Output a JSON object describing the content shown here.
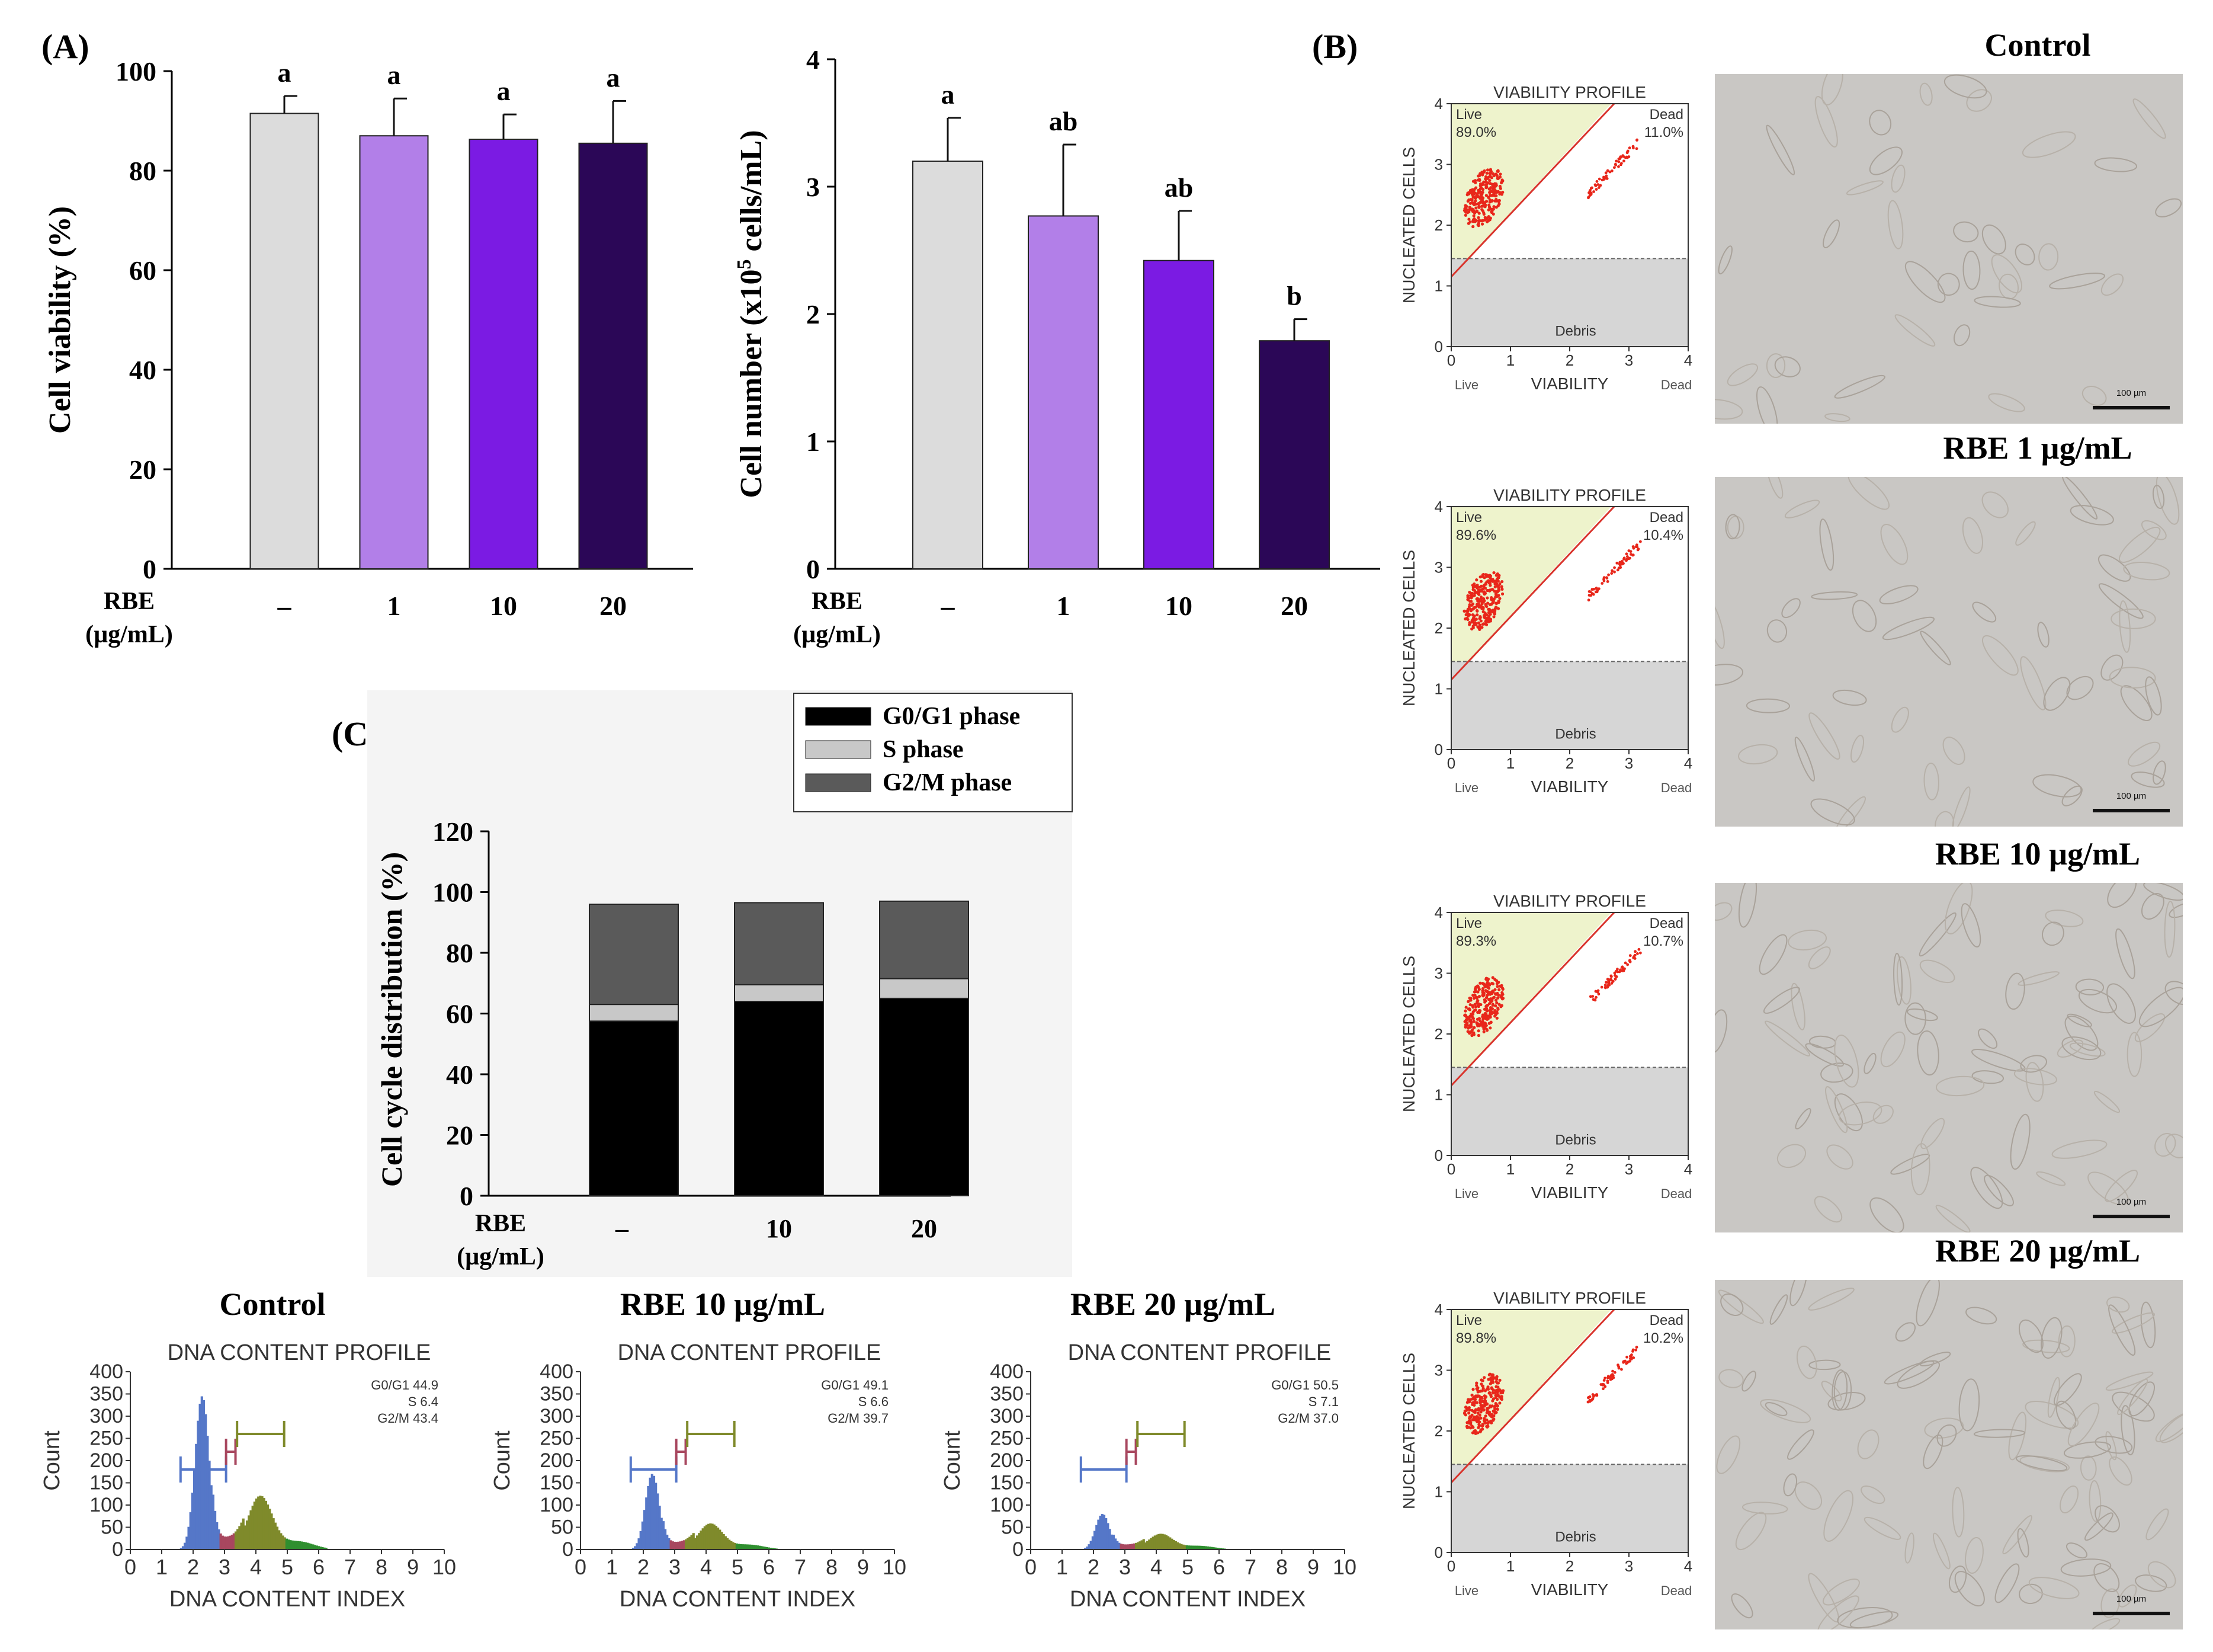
{
  "panel_labels": {
    "a": "(A)",
    "b": "(B)",
    "c": "(C)"
  },
  "rbe_label": "RBE",
  "unit_label": "(µg/mL)",
  "chart_data": [
    {
      "id": "viability",
      "type": "bar",
      "categories": [
        "–",
        "1",
        "10",
        "20"
      ],
      "values": [
        91.5,
        87,
        86.3,
        85.5
      ],
      "errors": [
        3.5,
        7.5,
        5,
        8.5
      ],
      "letters": [
        "a",
        "a",
        "a",
        "a"
      ],
      "colors": [
        "#dcdcdc",
        "#b27fe8",
        "#7b1be3",
        "#2b0757"
      ],
      "ylabel": "Cell viability (%)",
      "ylim": [
        0,
        100
      ],
      "yticks": [
        0,
        20,
        40,
        60,
        80,
        100
      ]
    },
    {
      "id": "cellnumber",
      "type": "bar",
      "categories": [
        "–",
        "1",
        "10",
        "20"
      ],
      "values": [
        3.2,
        2.77,
        2.42,
        1.79
      ],
      "errors": [
        0.34,
        0.56,
        0.39,
        0.17
      ],
      "letters": [
        "a",
        "ab",
        "ab",
        "b"
      ],
      "colors": [
        "#dcdcdc",
        "#b27fe8",
        "#7b1be3",
        "#2b0757"
      ],
      "ylabel": "Cell number (x10",
      "ylabel_sup": "5",
      "ylabel_tail": " cells/mL)",
      "ylim": [
        0,
        4
      ],
      "yticks": [
        0,
        1,
        2,
        3,
        4
      ]
    },
    {
      "id": "cellcycle",
      "type": "bar",
      "stacked": true,
      "categories": [
        "–",
        "10",
        "20"
      ],
      "series": [
        {
          "name": "G0/G1 phase",
          "values": [
            57.5,
            64,
            65
          ],
          "color": "#000000"
        },
        {
          "name": "S phase",
          "values": [
            5.5,
            5.5,
            6.5
          ],
          "color": "#c8c8c8"
        },
        {
          "name": "G2/M phase",
          "values": [
            33,
            27,
            25.5
          ],
          "color": "#5a5a5a"
        }
      ],
      "ylabel": "Cell cycle distribution (%)",
      "ylim": [
        0,
        120
      ],
      "yticks": [
        0,
        20,
        40,
        60,
        80,
        100,
        120
      ]
    }
  ],
  "viability_profiles": [
    {
      "title": "Control",
      "live_pct": "89.0%",
      "dead_pct": "11.0%"
    },
    {
      "title": "RBE 1 µg/mL",
      "live_pct": "89.6%",
      "dead_pct": "10.4%"
    },
    {
      "title": "RBE 10 µg/mL",
      "live_pct": "89.3%",
      "dead_pct": "10.7%"
    },
    {
      "title": "RBE 20 µg/mL",
      "live_pct": "89.8%",
      "dead_pct": "10.2%"
    }
  ],
  "viability_plot": {
    "header": "VIABILITY PROFILE",
    "ylabel": "NUCLEATED CELLS",
    "xlabel": "VIABILITY",
    "live": "Live",
    "dead": "Dead",
    "debris": "Debris",
    "ticks": [
      "0",
      "1",
      "2",
      "3",
      "4"
    ],
    "colors": {
      "live_region": "#eef3cc",
      "debris_region": "#d6d6d6",
      "points": "#e8261a",
      "gate_line": "#d9342c"
    }
  },
  "scale_bar_label": "100 µm",
  "dna_profiles": [
    {
      "title": "Control",
      "g0g1": "G0/G1 44.9",
      "s": "S 6.4",
      "g2m": "G2/M 43.4",
      "g1_peak": 345,
      "g2_peak": 120
    },
    {
      "title": "RBE 10 µg/mL",
      "g0g1": "G0/G1 49.1",
      "s": "S 6.6",
      "g2m": "G2/M 39.7",
      "g1_peak": 170,
      "g2_peak": 58
    },
    {
      "title": "RBE 20 µg/mL",
      "g0g1": "G0/G1 50.5",
      "s": "S 7.1",
      "g2m": "G2/M 37.0",
      "g1_peak": 80,
      "g2_peak": 35
    }
  ],
  "dna_plot": {
    "header": "DNA CONTENT PROFILE",
    "ylabel": "Count",
    "xlabel": "DNA CONTENT INDEX",
    "yticks": [
      "0",
      "50",
      "100",
      "150",
      "200",
      "250",
      "300",
      "350",
      "400"
    ],
    "xticks": [
      "0",
      "1",
      "2",
      "3",
      "4",
      "5",
      "6",
      "7",
      "8",
      "9",
      "10"
    ],
    "colors": {
      "g1": "#5577c8",
      "s": "#a8475f",
      "g2": "#7f8a2b",
      "tail": "#2f8f2f"
    }
  }
}
